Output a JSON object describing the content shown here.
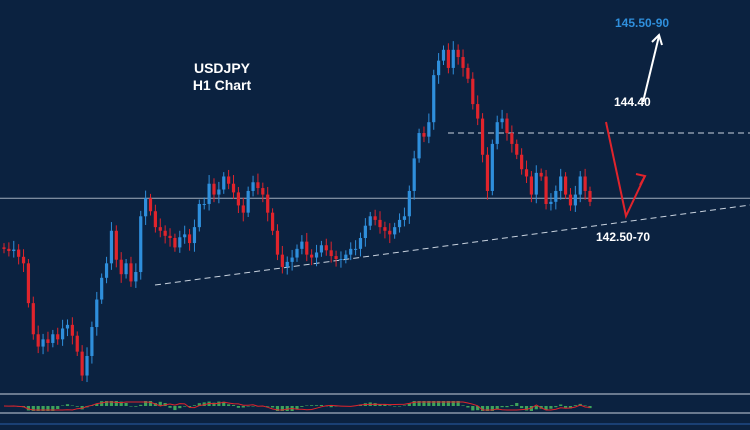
{
  "chart_data": {
    "type": "candlestick",
    "title": "USDJPY",
    "subtitle": "H1 Chart",
    "symbol": "USDJPY",
    "timeframe": "H1",
    "price_range": [
      140.85,
      146.1
    ],
    "levels": {
      "horizontal_support": 143.5,
      "resistance_dashed": 144.4,
      "resistance_label": "144.40",
      "target_up_label": "145.50-90",
      "target_down_label": "142.50-70"
    },
    "trendline": {
      "start": [
        0,
        142.3
      ],
      "end": [
        180,
        142.95
      ]
    },
    "series": [
      {
        "name": "close",
        "values": [
          142.8,
          142.77,
          142.79,
          142.69,
          142.6,
          142.05,
          141.62,
          141.45,
          141.55,
          141.5,
          141.62,
          141.55,
          141.7,
          141.75,
          141.6,
          141.38,
          141.05,
          141.32,
          141.72,
          142.1,
          142.4,
          142.6,
          143.05,
          142.65,
          142.45,
          142.6,
          142.35,
          142.48,
          143.25,
          143.5,
          143.32,
          143.1,
          143.05,
          142.98,
          142.95,
          142.82,
          142.96,
          143.0,
          142.88,
          143.1,
          143.42,
          143.42,
          143.7,
          143.55,
          143.62,
          143.8,
          143.7,
          143.58,
          143.4,
          143.3,
          143.6,
          143.72,
          143.64,
          143.55,
          143.3,
          143.05,
          142.72,
          142.55,
          142.62,
          142.68,
          142.8,
          142.9,
          142.72,
          142.68,
          142.75,
          142.85,
          142.78,
          142.7,
          142.66,
          142.66,
          142.72,
          142.8,
          142.8,
          142.95,
          143.12,
          143.25,
          143.2,
          143.1,
          143.05,
          143.0,
          143.1,
          143.2,
          143.25,
          143.6,
          144.05,
          144.4,
          144.35,
          144.55,
          145.2,
          145.4,
          145.55,
          145.3,
          145.55,
          145.45,
          145.3,
          145.15,
          144.8,
          144.6,
          144.1,
          143.6,
          144.25,
          144.55,
          144.6,
          144.4,
          144.25,
          144.1,
          143.9,
          143.8,
          143.55,
          143.85,
          143.8,
          143.42,
          143.45,
          143.6,
          143.8,
          143.55,
          143.4,
          143.55,
          143.8,
          143.6,
          143.45
        ]
      }
    ],
    "xlabel": "",
    "ylabel": "",
    "grid": false,
    "colors": {
      "background": "#0b2240",
      "bull_candle": "#2f8fdc",
      "bear_candle": "#e0242c",
      "line": "#c8d2de",
      "target_up": "#2f8fdc",
      "forecast_down": "#e0242c",
      "forecast_up": "#ffffff",
      "oscillator": "#3da35a"
    }
  }
}
